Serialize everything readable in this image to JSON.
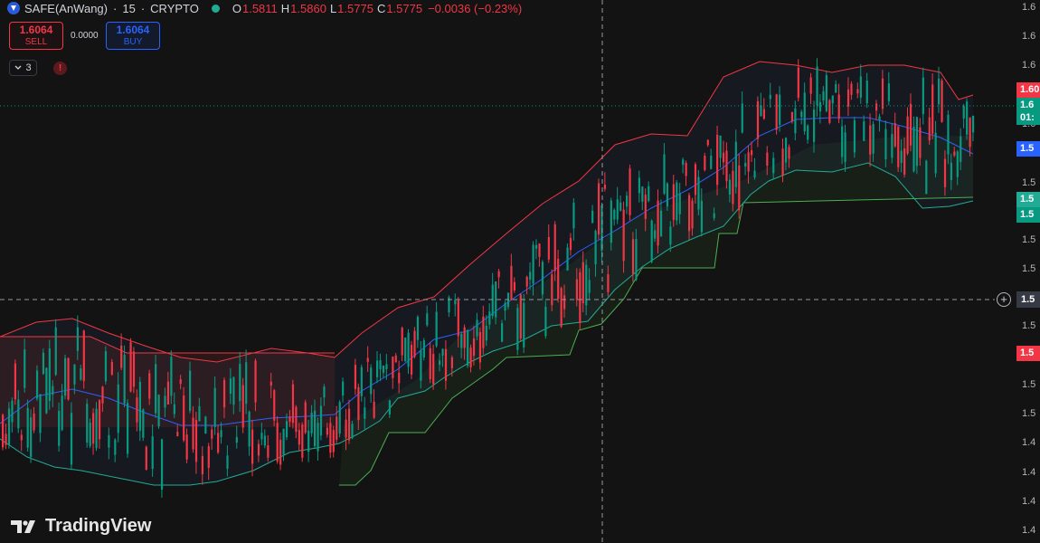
{
  "legend": {
    "symbol": "SAFE(AnWang)",
    "interval": "15",
    "exchange": "CRYPTO",
    "ohlc": [
      {
        "label": "O",
        "value": "1.5811"
      },
      {
        "label": "H",
        "value": "1.5860"
      },
      {
        "label": "L",
        "value": "1.5775"
      },
      {
        "label": "C",
        "value": "1.5775"
      }
    ],
    "change": "−0.0036 (−0.23%)"
  },
  "trade": {
    "sell_price": "1.6064",
    "sell_label": "SELL",
    "buy_price": "1.6064",
    "buy_label": "BUY",
    "spread": "0.0000"
  },
  "indicators": {
    "collapsed_count": "3",
    "warning_glyph": "!"
  },
  "price_axis": [
    "1.6",
    "1.6",
    "1.6",
    "1.6",
    "1.5",
    "1.5",
    "1.5",
    "1.5",
    "1.5",
    "1.5",
    "1.5",
    "1.5",
    "1.5",
    "1.4",
    "1.4",
    "1.4",
    "1.4"
  ],
  "price_tags": [
    {
      "text": "1.60",
      "color": "#f23645"
    },
    {
      "text": "1.6",
      "color": "#089981"
    },
    {
      "text": "01:",
      "color": "#089981"
    },
    {
      "text": "1.5",
      "color": "#2962ff"
    },
    {
      "text": "1.5",
      "color": "#22ab94"
    },
    {
      "text": "1.5",
      "color": "#089981"
    },
    {
      "text": "1.5",
      "color": "#f23645"
    }
  ],
  "crosshair_price": "1.5",
  "watermark": "TradingView",
  "colors": {
    "background": "#131313",
    "up": "#089981",
    "down": "#f23645",
    "basis": "#2962ff",
    "upper_band": "#f23645",
    "lower_band": "#22ab94",
    "trail_bull": "#4caf50",
    "trail_bear": "#f23645"
  },
  "chart_data": {
    "type": "candlestick",
    "instrument": "SAFE(AnWang)",
    "interval": "15",
    "last_bar": {
      "open": 1.5811,
      "high": 1.586,
      "low": 1.5775,
      "close": 1.5775
    },
    "overlays": [
      "basis line (blue)",
      "upper band (red)",
      "lower band (teal)",
      "trailing stop (red / green)"
    ]
  }
}
